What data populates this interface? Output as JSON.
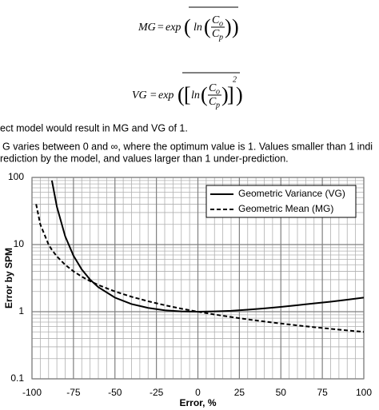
{
  "formulas": [
    {
      "lhs": "MG",
      "op": "=",
      "func": "exp",
      "ln": "ln",
      "num": "C",
      "num_sub": "o",
      "den": "C",
      "den_sub": "p"
    },
    {
      "lhs": "VG",
      "op": "=",
      "func": "exp",
      "ln": "ln",
      "num": "C",
      "num_sub": "o",
      "den": "C",
      "den_sub": "p",
      "power": "2"
    }
  ],
  "paragraph": [
    "ect model would result in MG and VG of 1.",
    "G varies between 0 and ∞, where the optimum value is 1. Values smaller than 1 indi",
    "rediction by the model, and values larger than 1 under-prediction."
  ],
  "chart_data": {
    "type": "line",
    "x": [
      -97.5,
      -95,
      -90,
      -88,
      -85,
      -80,
      -75,
      -70,
      -65,
      -60,
      -50,
      -40,
      -30,
      -20,
      -10,
      0,
      10,
      20,
      30,
      40,
      50,
      60,
      70,
      80,
      90,
      100
    ],
    "series": [
      {
        "name": "Geometric Variance (VG)",
        "color": "#000000",
        "dash": "solid",
        "values": [
          null,
          null,
          null,
          90,
          36.6,
          13.3,
          6.83,
          4.26,
          3.01,
          2.32,
          1.62,
          1.3,
          1.14,
          1.05,
          1.01,
          1,
          1.01,
          1.03,
          1.07,
          1.12,
          1.18,
          1.25,
          1.33,
          1.41,
          1.51,
          1.62
        ]
      },
      {
        "name": "Geometric Mean (MG)",
        "color": "#000000",
        "dash": "dashed",
        "values": [
          40,
          20,
          10,
          8.33,
          6.67,
          5,
          4,
          3.33,
          2.86,
          2.5,
          2,
          1.67,
          1.43,
          1.25,
          1.11,
          1,
          0.909,
          0.833,
          0.769,
          0.714,
          0.667,
          0.625,
          0.588,
          0.556,
          0.526,
          0.5
        ]
      }
    ],
    "xlim": [
      -100,
      100
    ],
    "ylim": [
      0.1,
      100
    ],
    "xticks": [
      -100,
      -75,
      -50,
      -25,
      0,
      25,
      50,
      75,
      100
    ],
    "yticks": [
      0.1,
      1,
      10,
      100
    ],
    "ylog": true,
    "grid": true,
    "xlabel": "Error, %",
    "ylabel": "Error by SPM",
    "legend": "upper right"
  }
}
